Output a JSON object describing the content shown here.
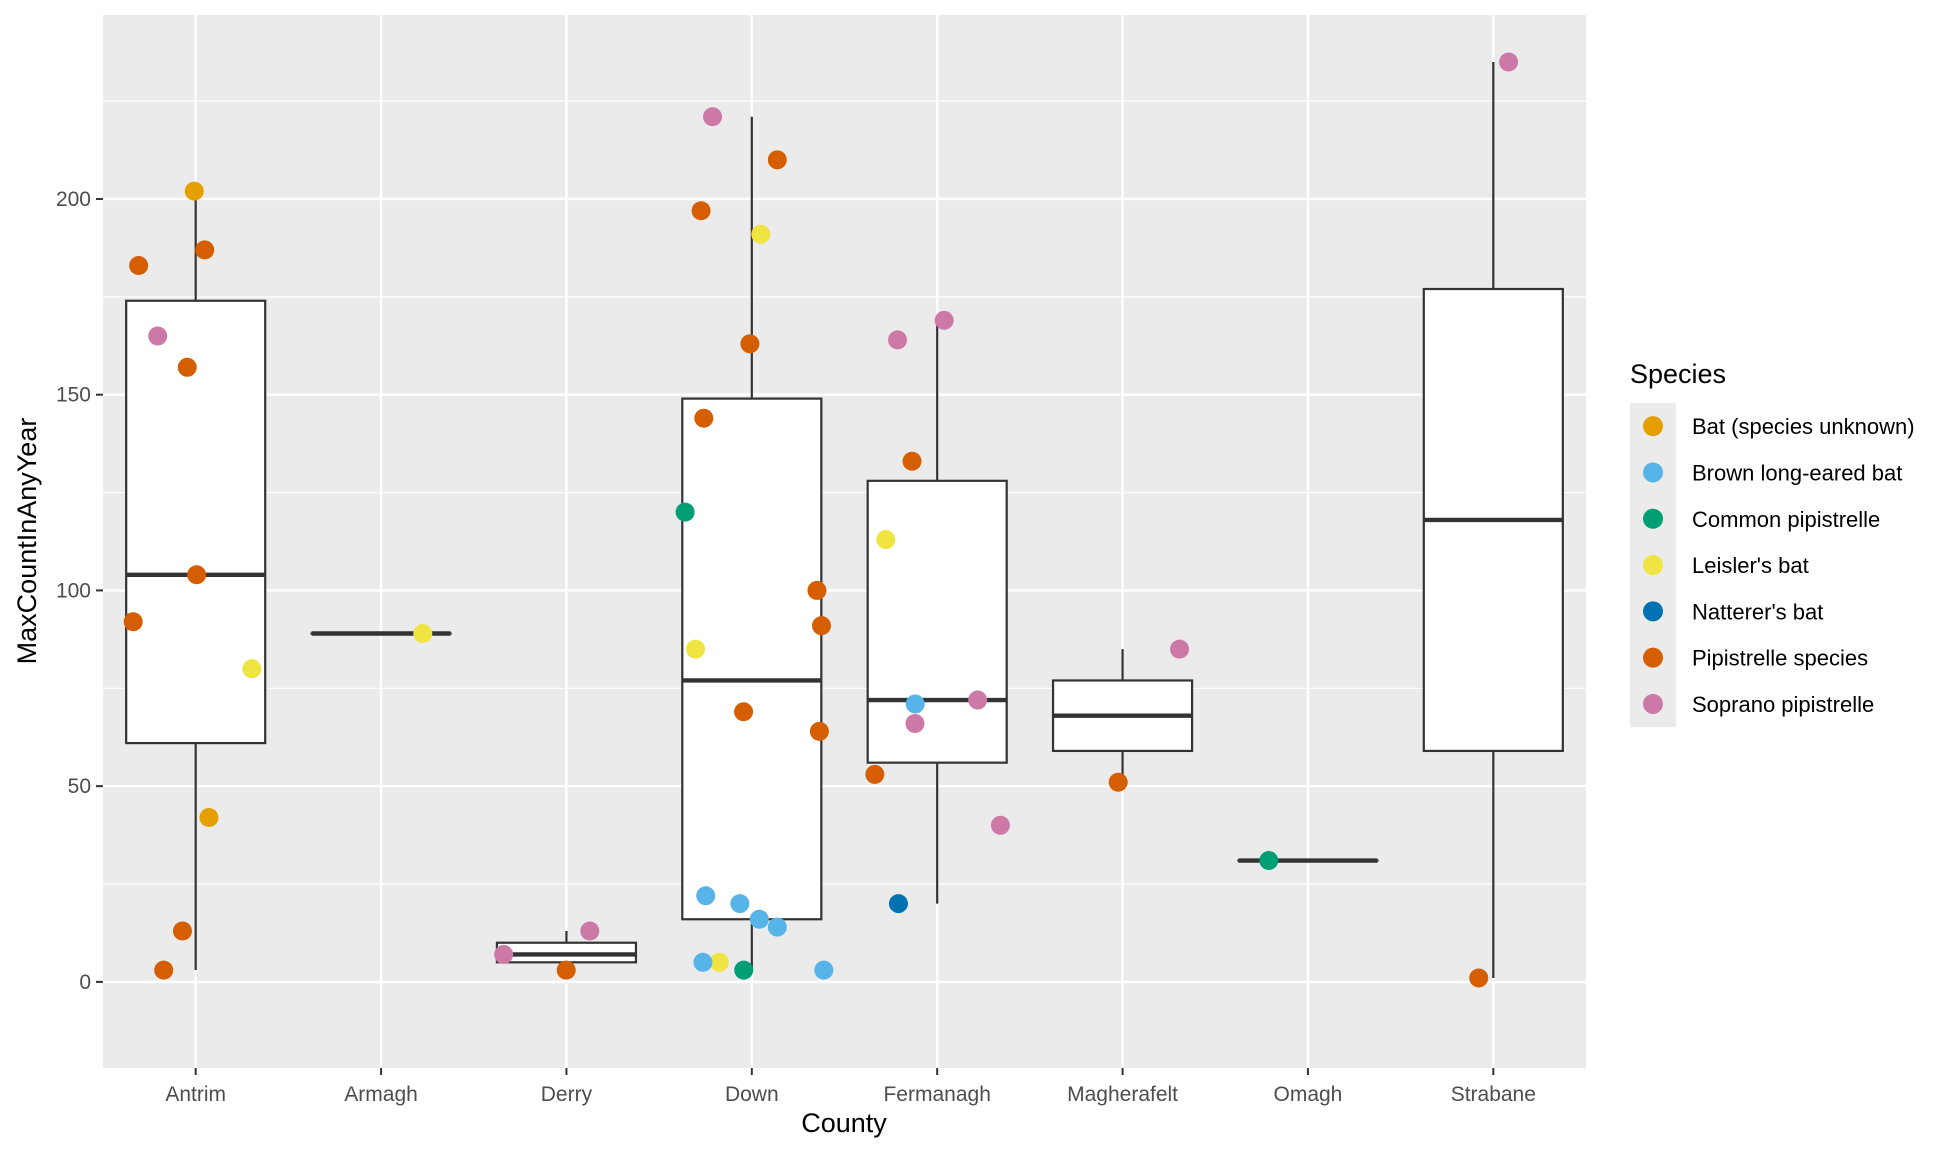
{
  "chart_data": {
    "type": "boxplot+jitter",
    "xlabel": "County",
    "ylabel": "MaxCountInAnyYear",
    "ylim": [
      -22,
      247
    ],
    "yticks": [
      0,
      50,
      100,
      150,
      200
    ],
    "categories": [
      "Antrim",
      "Armagh",
      "Derry",
      "Down",
      "Fermanagh",
      "Magherafelt",
      "Omagh",
      "Strabane"
    ],
    "colors": {
      "panel_background": "#ebebeb",
      "grid": "#ffffff",
      "box_fill": "#ffffff",
      "box_line": "#333333"
    },
    "legend": {
      "title": "Species",
      "position": "right",
      "items": [
        {
          "label": "Bat (species unknown)",
          "color": "#E69F00"
        },
        {
          "label": "Brown long-eared bat",
          "color": "#56B4E9"
        },
        {
          "label": "Common pipistrelle",
          "color": "#009E73"
        },
        {
          "label": "Leisler's bat",
          "color": "#F0E442"
        },
        {
          "label": "Natterer's bat",
          "color": "#0072B2"
        },
        {
          "label": "Pipistrelle species",
          "color": "#D55E00"
        },
        {
          "label": "Soprano pipistrelle",
          "color": "#CC79A7"
        }
      ]
    },
    "boxes": [
      {
        "county": "Antrim",
        "q1": 61,
        "median": 104,
        "q3": 174,
        "whisker_low": 3,
        "whisker_high": 202
      },
      {
        "county": "Armagh",
        "q1": 89,
        "median": 89,
        "q3": 89,
        "whisker_low": 89,
        "whisker_high": 89
      },
      {
        "county": "Derry",
        "q1": 5,
        "median": 7,
        "q3": 10,
        "whisker_low": 3,
        "whisker_high": 13
      },
      {
        "county": "Down",
        "q1": 16,
        "median": 77,
        "q3": 149,
        "whisker_low": 3,
        "whisker_high": 221
      },
      {
        "county": "Fermanagh",
        "q1": 56,
        "median": 72,
        "q3": 128,
        "whisker_low": 20,
        "whisker_high": 169
      },
      {
        "county": "Magherafelt",
        "q1": 59,
        "median": 68,
        "q3": 77,
        "whisker_low": 51,
        "whisker_high": 85
      },
      {
        "county": "Omagh",
        "q1": 31,
        "median": 31,
        "q3": 31,
        "whisker_low": 31,
        "whisker_high": 31
      },
      {
        "county": "Strabane",
        "q1": 59,
        "median": 118,
        "q3": 177,
        "whisker_low": 1,
        "whisker_high": 235
      }
    ],
    "points": [
      {
        "county": "Antrim",
        "species": "Bat (species unknown)",
        "y": 202
      },
      {
        "county": "Antrim",
        "species": "Pipistrelle species",
        "y": 187
      },
      {
        "county": "Antrim",
        "species": "Pipistrelle species",
        "y": 183
      },
      {
        "county": "Antrim",
        "species": "Soprano pipistrelle",
        "y": 165
      },
      {
        "county": "Antrim",
        "species": "Pipistrelle species",
        "y": 157
      },
      {
        "county": "Antrim",
        "species": "Pipistrelle species",
        "y": 104
      },
      {
        "county": "Antrim",
        "species": "Pipistrelle species",
        "y": 92
      },
      {
        "county": "Antrim",
        "species": "Leisler's bat",
        "y": 80
      },
      {
        "county": "Antrim",
        "species": "Bat (species unknown)",
        "y": 42
      },
      {
        "county": "Antrim",
        "species": "Pipistrelle species",
        "y": 13
      },
      {
        "county": "Antrim",
        "species": "Pipistrelle species",
        "y": 3
      },
      {
        "county": "Armagh",
        "species": "Leisler's bat",
        "y": 89
      },
      {
        "county": "Derry",
        "species": "Soprano pipistrelle",
        "y": 13
      },
      {
        "county": "Derry",
        "species": "Soprano pipistrelle",
        "y": 7
      },
      {
        "county": "Derry",
        "species": "Pipistrelle species",
        "y": 3
      },
      {
        "county": "Down",
        "species": "Soprano pipistrelle",
        "y": 221
      },
      {
        "county": "Down",
        "species": "Pipistrelle species",
        "y": 210
      },
      {
        "county": "Down",
        "species": "Pipistrelle species",
        "y": 197
      },
      {
        "county": "Down",
        "species": "Leisler's bat",
        "y": 191
      },
      {
        "county": "Down",
        "species": "Pipistrelle species",
        "y": 163
      },
      {
        "county": "Down",
        "species": "Pipistrelle species",
        "y": 144
      },
      {
        "county": "Down",
        "species": "Common pipistrelle",
        "y": 120
      },
      {
        "county": "Down",
        "species": "Pipistrelle species",
        "y": 100
      },
      {
        "county": "Down",
        "species": "Pipistrelle species",
        "y": 91
      },
      {
        "county": "Down",
        "species": "Leisler's bat",
        "y": 85
      },
      {
        "county": "Down",
        "species": "Pipistrelle species",
        "y": 69
      },
      {
        "county": "Down",
        "species": "Pipistrelle species",
        "y": 64
      },
      {
        "county": "Down",
        "species": "Brown long-eared bat",
        "y": 22
      },
      {
        "county": "Down",
        "species": "Brown long-eared bat",
        "y": 20
      },
      {
        "county": "Down",
        "species": "Brown long-eared bat",
        "y": 16
      },
      {
        "county": "Down",
        "species": "Brown long-eared bat",
        "y": 14
      },
      {
        "county": "Down",
        "species": "Leisler's bat",
        "y": 5
      },
      {
        "county": "Down",
        "species": "Brown long-eared bat",
        "y": 5
      },
      {
        "county": "Down",
        "species": "Brown long-eared bat",
        "y": 3
      },
      {
        "county": "Down",
        "species": "Common pipistrelle",
        "y": 3
      },
      {
        "county": "Fermanagh",
        "species": "Soprano pipistrelle",
        "y": 164
      },
      {
        "county": "Fermanagh",
        "species": "Soprano pipistrelle",
        "y": 169
      },
      {
        "county": "Fermanagh",
        "species": "Pipistrelle species",
        "y": 133
      },
      {
        "county": "Fermanagh",
        "species": "Leisler's bat",
        "y": 113
      },
      {
        "county": "Fermanagh",
        "species": "Soprano pipistrelle",
        "y": 72
      },
      {
        "county": "Fermanagh",
        "species": "Brown long-eared bat",
        "y": 71
      },
      {
        "county": "Fermanagh",
        "species": "Soprano pipistrelle",
        "y": 66
      },
      {
        "county": "Fermanagh",
        "species": "Pipistrelle species",
        "y": 53
      },
      {
        "county": "Fermanagh",
        "species": "Soprano pipistrelle",
        "y": 40
      },
      {
        "county": "Fermanagh",
        "species": "Natterer's bat",
        "y": 20
      },
      {
        "county": "Magherafelt",
        "species": "Soprano pipistrelle",
        "y": 85
      },
      {
        "county": "Magherafelt",
        "species": "Pipistrelle species",
        "y": 51
      },
      {
        "county": "Omagh",
        "species": "Common pipistrelle",
        "y": 31
      },
      {
        "county": "Strabane",
        "species": "Soprano pipistrelle",
        "y": 235
      },
      {
        "county": "Strabane",
        "species": "Pipistrelle species",
        "y": 1
      }
    ]
  }
}
